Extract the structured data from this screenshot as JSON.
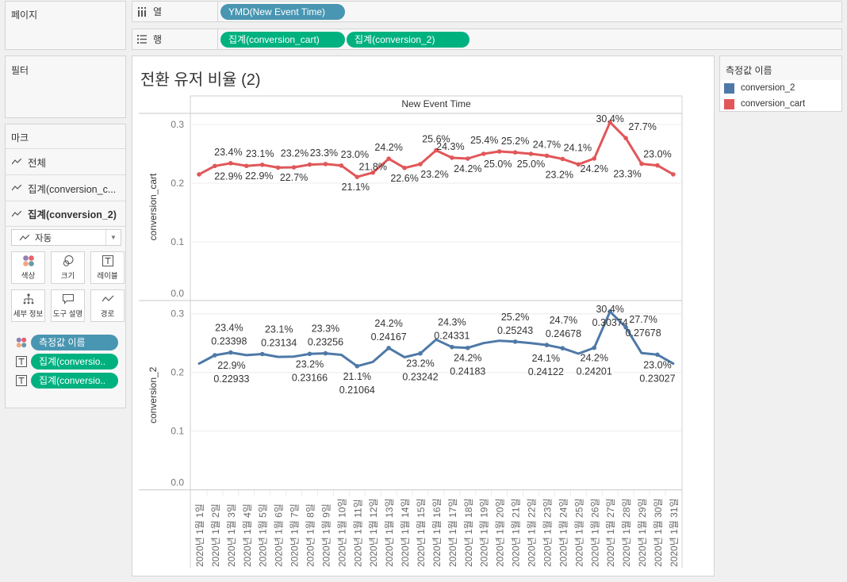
{
  "pages_card": {
    "title": "페이지"
  },
  "filters_card": {
    "title": "필터"
  },
  "marks_card": {
    "title": "마크",
    "rows": [
      {
        "label": "전체"
      },
      {
        "label": "집계(conversion_c..."
      },
      {
        "label": "집계(conversion_2)"
      }
    ],
    "mark_type": "자동",
    "buttons": [
      {
        "label": "색상",
        "icon": "color-icon"
      },
      {
        "label": "크기",
        "icon": "size-icon"
      },
      {
        "label": "레이블",
        "icon": "label-icon"
      },
      {
        "label": "세부 정보",
        "icon": "detail-icon"
      },
      {
        "label": "도구 설명",
        "icon": "tooltip-icon"
      },
      {
        "label": "경로",
        "icon": "path-icon"
      }
    ],
    "pills": [
      {
        "label": "측정값 이름",
        "icon": "color-icon"
      },
      {
        "label": "집계(conversio..",
        "icon": "label-icon"
      },
      {
        "label": "집계(conversio..",
        "icon": "label-icon"
      }
    ]
  },
  "shelves": {
    "columns": {
      "label": "열",
      "pills": [
        "YMD(New Event Time)"
      ]
    },
    "rows": {
      "label": "행",
      "pills": [
        "집계(conversion_cart)",
        "집계(conversion_2)"
      ]
    }
  },
  "view": {
    "title": "전환 유저 비율 (2)"
  },
  "legend": {
    "title": "측정값 이름",
    "items": [
      {
        "label": "conversion_2",
        "color": "#4e79a7"
      },
      {
        "label": "conversion_cart",
        "color": "#e15759"
      }
    ]
  },
  "chart_data": {
    "type": "line",
    "title": "전환 유저 비율 (2)",
    "column_header": "New Event Time",
    "xlabel": "New Event Time",
    "categories": [
      "2020년 1월 1일",
      "2020년 1월 2일",
      "2020년 1월 3일",
      "2020년 1월 4일",
      "2020년 1월 5일",
      "2020년 1월 6일",
      "2020년 1월 7일",
      "2020년 1월 8일",
      "2020년 1월 9일",
      "2020년 1월 10일",
      "2020년 1월 11일",
      "2020년 1월 12일",
      "2020년 1월 13일",
      "2020년 1월 14일",
      "2020년 1월 15일",
      "2020년 1월 16일",
      "2020년 1월 17일",
      "2020년 1월 18일",
      "2020년 1월 19일",
      "2020년 1월 20일",
      "2020년 1월 21일",
      "2020년 1월 22일",
      "2020년 1월 23일",
      "2020년 1월 24일",
      "2020년 1월 25일",
      "2020년 1월 26일",
      "2020년 1월 27일",
      "2020년 1월 28일",
      "2020년 1월 29일",
      "2020년 1월 30일",
      "2020년 1월 31일"
    ],
    "series": [
      {
        "name": "conversion_cart",
        "color": "#e15759",
        "values": [
          0.215,
          0.22933,
          0.23398,
          0.2294,
          0.23134,
          0.2265,
          0.227,
          0.23166,
          0.23256,
          0.23,
          0.21064,
          0.218,
          0.24167,
          0.226,
          0.23242,
          0.256,
          0.24331,
          0.24183,
          0.25,
          0.254,
          0.25243,
          0.25,
          0.24678,
          0.24122,
          0.232,
          0.24201,
          0.30374,
          0.27678,
          0.233,
          0.23027,
          0.215
        ]
      },
      {
        "name": "conversion_2",
        "color": "#4e79a7",
        "values": [
          0.215,
          0.22933,
          0.23398,
          0.2294,
          0.23134,
          0.2265,
          0.227,
          0.23166,
          0.23256,
          0.23,
          0.21064,
          0.218,
          0.24167,
          0.226,
          0.23242,
          0.256,
          0.24331,
          0.24183,
          0.25,
          0.254,
          0.25243,
          0.25,
          0.24678,
          0.24122,
          0.232,
          0.24201,
          0.30374,
          0.27678,
          0.233,
          0.23027,
          0.215
        ]
      }
    ],
    "panes": [
      {
        "measure": "conversion_cart",
        "ylabel": "conversion_cart",
        "ylim": [
          0,
          0.3
        ],
        "yticks": [
          {
            "value": 0,
            "label": "0.0"
          },
          {
            "value": 0.1,
            "label": "0.1"
          },
          {
            "value": 0.2,
            "label": "0.2"
          },
          {
            "value": 0.3,
            "label": "0.3"
          }
        ],
        "labels": [
          {
            "day": 2,
            "pos": "below",
            "lines": [
              "22.9%"
            ]
          },
          {
            "day": 3,
            "pos": "above",
            "lines": [
              "23.4%"
            ]
          },
          {
            "day": 4,
            "pos": "below",
            "lines": [
              "22.9%"
            ]
          },
          {
            "day": 5,
            "pos": "above",
            "lines": [
              "23.1%"
            ]
          },
          {
            "day": 7,
            "pos": "below",
            "lines": [
              "22.7%"
            ]
          },
          {
            "day": 8,
            "pos": "above",
            "lines": [
              "23.2%"
            ]
          },
          {
            "day": 9,
            "pos": "above",
            "lines": [
              "23.3%"
            ]
          },
          {
            "day": 10,
            "pos": "above",
            "lines": [
              "23.0%"
            ]
          },
          {
            "day": 11,
            "pos": "below",
            "lines": [
              "21.1%"
            ]
          },
          {
            "day": 12,
            "pos": "above",
            "lines": [
              "21.8%"
            ]
          },
          {
            "day": 13,
            "pos": "above",
            "lines": [
              "24.2%"
            ]
          },
          {
            "day": 14,
            "pos": "below",
            "lines": [
              "22.6%"
            ]
          },
          {
            "day": 15,
            "pos": "below",
            "lines": [
              "23.2%"
            ]
          },
          {
            "day": 16,
            "pos": "above",
            "lines": [
              "25.6%"
            ]
          },
          {
            "day": 17,
            "pos": "above",
            "lines": [
              "24.3%"
            ]
          },
          {
            "day": 18,
            "pos": "below",
            "lines": [
              "24.2%"
            ]
          },
          {
            "day": 19,
            "pos": "below",
            "lines": [
              "25.0%"
            ]
          },
          {
            "day": 20,
            "pos": "above",
            "lines": [
              "25.4%"
            ]
          },
          {
            "day": 21,
            "pos": "above",
            "lines": [
              "25.2%"
            ]
          },
          {
            "day": 22,
            "pos": "below",
            "lines": [
              "25.0%"
            ]
          },
          {
            "day": 23,
            "pos": "above",
            "lines": [
              "24.7%"
            ]
          },
          {
            "day": 24,
            "pos": "above",
            "lines": [
              "24.1%"
            ]
          },
          {
            "day": 25,
            "pos": "below",
            "lines": [
              "23.2%"
            ]
          },
          {
            "day": 26,
            "pos": "below",
            "lines": [
              "24.2%"
            ]
          },
          {
            "day": 27,
            "pos": "above",
            "lines": [
              "30.4%"
            ]
          },
          {
            "day": 28,
            "pos": "above",
            "lines": [
              "27.7%"
            ]
          },
          {
            "day": 29,
            "pos": "below",
            "lines": [
              "23.3%"
            ]
          },
          {
            "day": 30,
            "pos": "above",
            "lines": [
              "23.0%"
            ]
          }
        ]
      },
      {
        "measure": "conversion_2",
        "ylabel": "conversion_2",
        "ylim": [
          0,
          0.3
        ],
        "yticks": [
          {
            "value": 0,
            "label": "0.0"
          },
          {
            "value": 0.1,
            "label": "0.1"
          },
          {
            "value": 0.2,
            "label": "0.2"
          },
          {
            "value": 0.3,
            "label": "0.3"
          }
        ],
        "labels": [
          {
            "day": 2,
            "pos": "below",
            "lines": [
              "22.9%",
              "0.22933"
            ]
          },
          {
            "day": 3,
            "pos": "above",
            "lines": [
              "23.4%",
              "0.23398"
            ]
          },
          {
            "day": 5,
            "pos": "above",
            "lines": [
              "23.1%",
              "0.23134"
            ]
          },
          {
            "day": 8,
            "pos": "below",
            "lines": [
              "23.2%",
              "0.23166"
            ]
          },
          {
            "day": 9,
            "pos": "above",
            "lines": [
              "23.3%",
              "0.23256"
            ]
          },
          {
            "day": 11,
            "pos": "below",
            "lines": [
              "21.1%",
              "0.21064"
            ]
          },
          {
            "day": 13,
            "pos": "above",
            "lines": [
              "24.2%",
              "0.24167"
            ]
          },
          {
            "day": 15,
            "pos": "below",
            "lines": [
              "23.2%",
              "0.23242"
            ]
          },
          {
            "day": 17,
            "pos": "above",
            "lines": [
              "24.3%",
              "0.24331"
            ]
          },
          {
            "day": 18,
            "pos": "below",
            "lines": [
              "24.2%",
              "0.24183"
            ]
          },
          {
            "day": 21,
            "pos": "above",
            "lines": [
              "25.2%",
              "0.25243"
            ]
          },
          {
            "day": 23,
            "pos": "above",
            "lines": [
              "24.7%",
              "0.24678"
            ]
          },
          {
            "day": 24,
            "pos": "below",
            "lines": [
              "24.1%",
              "0.24122"
            ]
          },
          {
            "day": 26,
            "pos": "below",
            "lines": [
              "24.2%",
              "0.24201"
            ]
          },
          {
            "day": 27,
            "pos": "above",
            "lines": [
              "30.4%",
              "0.30374"
            ]
          },
          {
            "day": 28,
            "pos": "above",
            "lines": [
              "27.7%",
              "0.27678"
            ]
          },
          {
            "day": 30,
            "pos": "below",
            "lines": [
              "23.0%",
              "0.23027"
            ]
          }
        ]
      }
    ],
    "grid": true,
    "legend_position": "right"
  }
}
